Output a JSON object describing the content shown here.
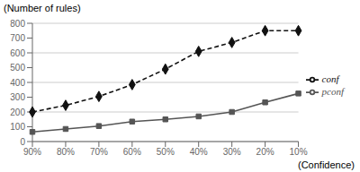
{
  "chart_data": {
    "type": "line",
    "xlabel": "(Confidence)",
    "ylabel": "(Number of rules)",
    "categories": [
      "90%",
      "80%",
      "70%",
      "60%",
      "50%",
      "40%",
      "30%",
      "20%",
      "10%"
    ],
    "series": [
      {
        "name": "conf",
        "color": "#111111",
        "values": [
          200,
          245,
          305,
          385,
          490,
          610,
          670,
          750,
          750
        ],
        "marker": "diamond",
        "line_style": "dashed"
      },
      {
        "name": "pconf",
        "color": "#555555",
        "values": [
          65,
          85,
          105,
          135,
          150,
          170,
          200,
          265,
          325
        ],
        "marker": "square",
        "line_style": "solid"
      }
    ],
    "ylim": [
      0,
      800
    ],
    "yticks": [
      0,
      100,
      200,
      300,
      400,
      500,
      600,
      700,
      800
    ],
    "grid": "y",
    "legend": "right"
  }
}
